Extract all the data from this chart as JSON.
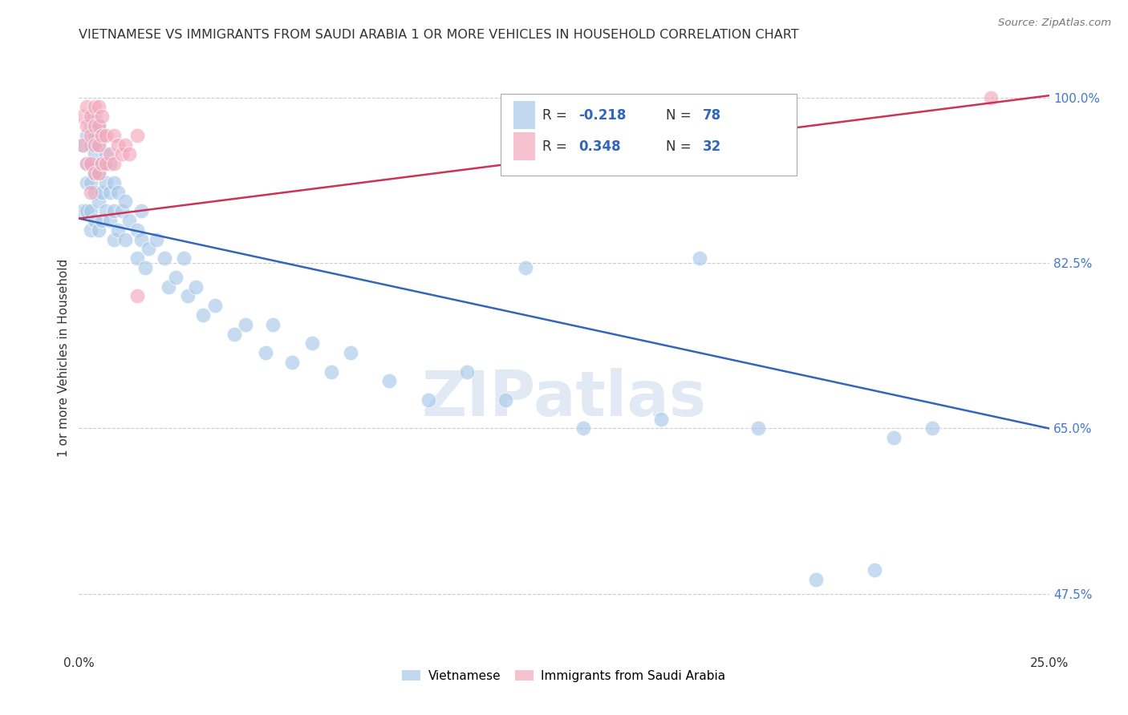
{
  "title": "VIETNAMESE VS IMMIGRANTS FROM SAUDI ARABIA 1 OR MORE VEHICLES IN HOUSEHOLD CORRELATION CHART",
  "source": "Source: ZipAtlas.com",
  "ylabel": "1 or more Vehicles in Household",
  "xlim": [
    0.0,
    0.25
  ],
  "ylim": [
    0.415,
    1.035
  ],
  "blue_R": -0.218,
  "blue_N": 78,
  "pink_R": 0.348,
  "pink_N": 32,
  "blue_color": "#a8c8e8",
  "pink_color": "#f4a8bc",
  "blue_line_color": "#3366bb",
  "pink_line_color": "#cc3355",
  "legend_label_blue": "Vietnamese",
  "legend_label_pink": "Immigrants from Saudi Arabia",
  "blue_line_x0": 0.0,
  "blue_line_y0": 0.872,
  "blue_line_x1": 0.25,
  "blue_line_y1": 0.65,
  "pink_line_x0": 0.0,
  "pink_line_x1": 0.25,
  "pink_line_y0": 0.872,
  "pink_line_y1": 1.002,
  "blue_x": [
    0.001,
    0.001,
    0.002,
    0.002,
    0.002,
    0.002,
    0.003,
    0.003,
    0.003,
    0.003,
    0.003,
    0.003,
    0.004,
    0.004,
    0.004,
    0.004,
    0.004,
    0.004,
    0.005,
    0.005,
    0.005,
    0.005,
    0.005,
    0.006,
    0.006,
    0.006,
    0.006,
    0.007,
    0.007,
    0.007,
    0.008,
    0.008,
    0.008,
    0.009,
    0.009,
    0.009,
    0.01,
    0.01,
    0.011,
    0.012,
    0.012,
    0.013,
    0.015,
    0.015,
    0.016,
    0.016,
    0.017,
    0.018,
    0.02,
    0.022,
    0.023,
    0.025,
    0.027,
    0.028,
    0.03,
    0.032,
    0.035,
    0.04,
    0.043,
    0.048,
    0.05,
    0.055,
    0.06,
    0.065,
    0.07,
    0.08,
    0.09,
    0.1,
    0.11,
    0.115,
    0.13,
    0.15,
    0.16,
    0.175,
    0.19,
    0.205,
    0.21,
    0.22
  ],
  "blue_y": [
    0.95,
    0.88,
    0.96,
    0.93,
    0.91,
    0.88,
    0.97,
    0.95,
    0.93,
    0.91,
    0.88,
    0.86,
    0.98,
    0.96,
    0.94,
    0.92,
    0.9,
    0.87,
    0.97,
    0.95,
    0.92,
    0.89,
    0.86,
    0.96,
    0.93,
    0.9,
    0.87,
    0.94,
    0.91,
    0.88,
    0.93,
    0.9,
    0.87,
    0.91,
    0.88,
    0.85,
    0.9,
    0.86,
    0.88,
    0.89,
    0.85,
    0.87,
    0.86,
    0.83,
    0.88,
    0.85,
    0.82,
    0.84,
    0.85,
    0.83,
    0.8,
    0.81,
    0.83,
    0.79,
    0.8,
    0.77,
    0.78,
    0.75,
    0.76,
    0.73,
    0.76,
    0.72,
    0.74,
    0.71,
    0.73,
    0.7,
    0.68,
    0.71,
    0.68,
    0.82,
    0.65,
    0.66,
    0.83,
    0.65,
    0.49,
    0.5,
    0.64,
    0.65
  ],
  "pink_x": [
    0.001,
    0.001,
    0.002,
    0.002,
    0.002,
    0.003,
    0.003,
    0.003,
    0.003,
    0.004,
    0.004,
    0.004,
    0.004,
    0.005,
    0.005,
    0.005,
    0.005,
    0.006,
    0.006,
    0.006,
    0.007,
    0.007,
    0.008,
    0.009,
    0.009,
    0.01,
    0.011,
    0.012,
    0.013,
    0.015,
    0.015,
    0.235
  ],
  "pink_y": [
    0.98,
    0.95,
    0.99,
    0.97,
    0.93,
    0.98,
    0.96,
    0.93,
    0.9,
    0.99,
    0.97,
    0.95,
    0.92,
    0.99,
    0.97,
    0.95,
    0.92,
    0.98,
    0.96,
    0.93,
    0.96,
    0.93,
    0.94,
    0.96,
    0.93,
    0.95,
    0.94,
    0.95,
    0.94,
    0.96,
    0.79,
    1.0
  ],
  "ytick_positions": [
    0.475,
    0.65,
    0.825,
    1.0
  ],
  "ytick_labels": [
    "47.5%",
    "65.0%",
    "82.5%",
    "100.0%"
  ],
  "xtick_positions": [
    0.0,
    0.05,
    0.1,
    0.15,
    0.2,
    0.25
  ],
  "xtick_labels": [
    "0.0%",
    "",
    "",
    "",
    "",
    "25.0%"
  ]
}
